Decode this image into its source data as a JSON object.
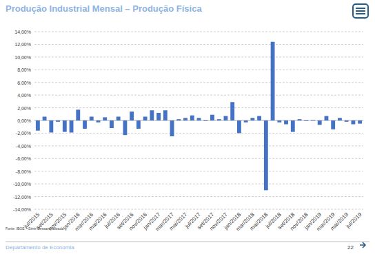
{
  "chart_data": {
    "type": "bar",
    "title": "Produção Industrial Mensal – Produção Física",
    "source": "Fonte: IBGE – Série Dessazonalizada",
    "footer": "Departamento de Economia",
    "page": "22",
    "categories": [
      "jul/2015",
      null,
      "set/2015",
      null,
      "nov/2015",
      null,
      "jan/2016",
      null,
      "mar/2016",
      null,
      "mai/2016",
      null,
      "jul/2016",
      null,
      "set/2016",
      null,
      "nov/2016",
      null,
      "jan/2017",
      null,
      "mar/2017",
      null,
      "mai/2017",
      null,
      "jul/2017",
      null,
      "set/2017",
      null,
      "nov/2017",
      null,
      "jan/2018",
      null,
      "mar/2018",
      null,
      "mai/2018",
      null,
      "jul/2018",
      null,
      "set/2018",
      null,
      "nov/2018",
      null,
      "jan/2019",
      null,
      "mar/2019",
      null,
      "mai/2019",
      null,
      "jul/2019"
    ],
    "values": [
      -1.6,
      0.6,
      -1.9,
      -0.2,
      -1.8,
      -1.9,
      1.7,
      -1.3,
      0.6,
      -0.3,
      0.5,
      -1.2,
      0.6,
      -2.3,
      1.4,
      -1.3,
      0.6,
      1.6,
      1.2,
      1.6,
      -2.5,
      0.2,
      0.4,
      0.8,
      0.4,
      -0.1,
      0.9,
      0.2,
      0.7,
      2.9,
      -2.0,
      -0.3,
      0.4,
      0.7,
      -11.0,
      12.4,
      -0.3,
      -0.6,
      -1.8,
      0.2,
      -0.1,
      0.1,
      -0.7,
      0.7,
      -1.4,
      0.4,
      -0.2,
      -0.6,
      -0.5
    ],
    "color": "#4472c4",
    "ylim": [
      -14,
      14
    ],
    "yticks": [
      {
        "value": -14,
        "label": "-14,00%"
      },
      {
        "value": -12,
        "label": "-12,00%"
      },
      {
        "value": -10,
        "label": "-10,00%"
      },
      {
        "value": -8,
        "label": "-8,00%"
      },
      {
        "value": -6,
        "label": "-6,00%"
      },
      {
        "value": -4,
        "label": "-4,00%"
      },
      {
        "value": -2,
        "label": "-2,00%"
      },
      {
        "value": 0,
        "label": "0,00%"
      },
      {
        "value": 2,
        "label": "2,00%"
      },
      {
        "value": 4,
        "label": "4,00%"
      },
      {
        "value": 6,
        "label": "6,00%"
      },
      {
        "value": 8,
        "label": "8,00%"
      },
      {
        "value": 10,
        "label": "10,00%"
      },
      {
        "value": 12,
        "label": "12,00%"
      },
      {
        "value": 14,
        "label": "14,00%"
      }
    ],
    "grid": true
  }
}
